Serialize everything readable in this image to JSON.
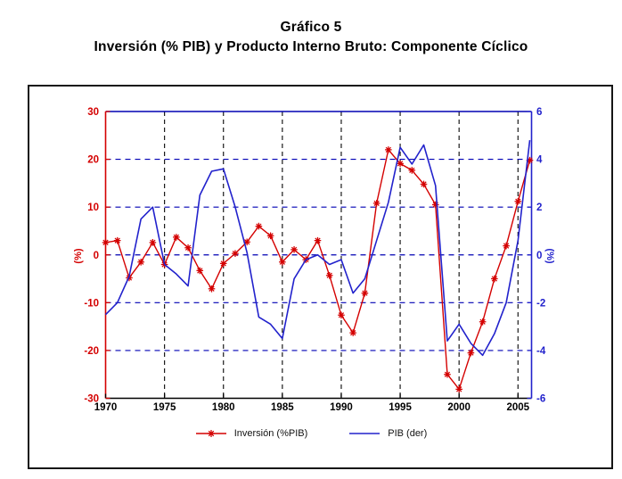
{
  "title": "Gráfico 5",
  "subtitle": "Inversión (% PIB) y Producto Interno Bruto: Componente Cíclico",
  "chart_data": {
    "type": "line",
    "title": "Gráfico 5",
    "subtitle": "Inversión (% PIB) y Producto Interno Bruto: Componente Cíclico",
    "x": [
      1970,
      1971,
      1972,
      1973,
      1974,
      1975,
      1976,
      1977,
      1978,
      1979,
      1980,
      1981,
      1982,
      1983,
      1984,
      1985,
      1986,
      1987,
      1988,
      1989,
      1990,
      1991,
      1992,
      1993,
      1994,
      1995,
      1996,
      1997,
      1998,
      1999,
      2000,
      2001,
      2002,
      2003,
      2004,
      2005,
      2006
    ],
    "series": [
      {
        "name": "Inversión (%PIB)",
        "axis": "left",
        "color": "#d40000",
        "marker": "asterisk",
        "values": [
          2.6,
          3.0,
          -4.8,
          -1.5,
          2.6,
          -2.0,
          3.7,
          1.5,
          -3.3,
          -7.1,
          -1.8,
          0.3,
          2.7,
          6.0,
          4.0,
          -1.5,
          1.1,
          -1.0,
          3.0,
          -4.3,
          -12.6,
          -16.3,
          -8.0,
          10.8,
          22.0,
          19.1,
          17.7,
          14.8,
          10.5,
          -25.0,
          -28.1,
          -20.5,
          -14.0,
          -5.0,
          1.9,
          11.2,
          19.8
        ]
      },
      {
        "name": "PIB (der)",
        "axis": "right",
        "color": "#2222cc",
        "marker": "none",
        "values": [
          -2.5,
          -2.0,
          -0.9,
          1.5,
          2.0,
          -0.4,
          -0.8,
          -1.3,
          2.5,
          3.5,
          3.6,
          2.0,
          0.1,
          -2.6,
          -2.9,
          -3.5,
          -1.0,
          -0.2,
          0.0,
          -0.4,
          -0.2,
          -1.6,
          -1.0,
          0.6,
          2.2,
          4.5,
          3.8,
          4.6,
          2.9,
          -3.6,
          -2.9,
          -3.7,
          -4.2,
          -3.3,
          -2.0,
          0.6,
          4.8
        ]
      }
    ],
    "left_axis": {
      "label": "(%)",
      "min": -30,
      "max": 30,
      "ticks": [
        30,
        20,
        10,
        0,
        -10,
        -20,
        -30
      ],
      "color": "#d40000"
    },
    "right_axis": {
      "label": "(%)",
      "min": -6,
      "max": 6,
      "ticks": [
        6,
        4,
        2,
        0,
        -2,
        -4,
        -6
      ],
      "color": "#2222cc"
    },
    "x_axis": {
      "min": 1970,
      "max": 2006.15,
      "ticks": [
        1970,
        1975,
        1980,
        1985,
        1990,
        1995,
        2000,
        2005
      ],
      "color": "#000000"
    },
    "grid": {
      "h_values_right": [
        4,
        2,
        0,
        -2,
        -4
      ],
      "h_color": "#0000b4",
      "v_years": [
        1975,
        1980,
        1985,
        1990,
        1995,
        2000,
        2005
      ],
      "v_color": "#1a1a1a",
      "grid_on": true
    },
    "legend": [
      {
        "label": "Inversión (%PIB)",
        "color": "#d40000",
        "marker": "asterisk"
      },
      {
        "label": "PIB (der)",
        "color": "#2222cc",
        "marker": "none"
      }
    ],
    "legend_position": "bottom-center"
  }
}
